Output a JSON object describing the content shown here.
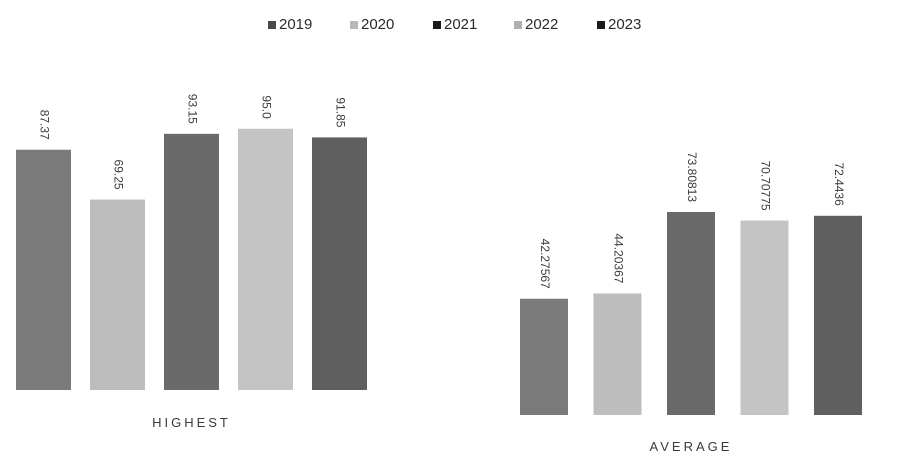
{
  "chart_data": [
    {
      "type": "bar",
      "categories": [
        "HIGHEST"
      ],
      "series": [
        {
          "name": "2019",
          "values": [
            87.37
          ],
          "label": "87.37",
          "color": "#7a7a7a"
        },
        {
          "name": "2020",
          "values": [
            69.25
          ],
          "label": "69.25",
          "color": "#bdbdbd"
        },
        {
          "name": "2021",
          "values": [
            93.15
          ],
          "label": "93.15",
          "color": "#6a6a6a"
        },
        {
          "name": "2022",
          "values": [
            95.0
          ],
          "label": "95.0",
          "color": "#c4c4c4"
        },
        {
          "name": "2023",
          "values": [
            91.85
          ],
          "label": "91.85",
          "color": "#5f5f5f"
        }
      ]
    },
    {
      "type": "bar",
      "categories": [
        "AVERAGE"
      ],
      "series": [
        {
          "name": "2019",
          "values": [
            42.27567
          ],
          "label": "42.27567",
          "color": "#7a7a7a"
        },
        {
          "name": "2020",
          "values": [
            44.20367
          ],
          "label": "44.20367",
          "color": "#bdbdbd"
        },
        {
          "name": "2021",
          "values": [
            73.80813
          ],
          "label": "73.80813",
          "color": "#6a6a6a"
        },
        {
          "name": "2022",
          "values": [
            70.70775
          ],
          "label": "70.70775",
          "color": "#c4c4c4"
        },
        {
          "name": "2023",
          "values": [
            72.4436
          ],
          "label": "72.4436",
          "color": "#5f5f5f"
        }
      ]
    }
  ],
  "legend": {
    "items": [
      {
        "label": "2019",
        "color": "#4a4a4a"
      },
      {
        "label": "2020",
        "color": "#b8b8b8"
      },
      {
        "label": "2021",
        "color": "#1a1a1a"
      },
      {
        "label": "2022",
        "color": "#b0b0b0"
      },
      {
        "label": "2023",
        "color": "#1a1a1a"
      }
    ]
  }
}
